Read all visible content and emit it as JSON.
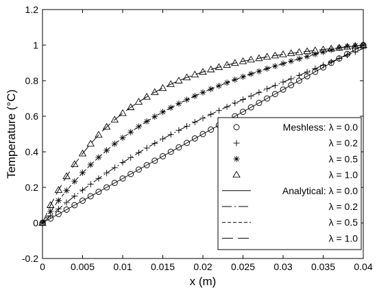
{
  "chart_data": {
    "type": "line",
    "title": "",
    "xlabel": "x (m)",
    "ylabel": "Temperature (°C)",
    "xlim": [
      0,
      0.04
    ],
    "ylim": [
      -0.2,
      1.2
    ],
    "xticks": [
      "0",
      "0.005",
      "0.01",
      "0.015",
      "0.02",
      "0.025",
      "0.03",
      "0.035",
      "0.04"
    ],
    "yticks": [
      "-0.2",
      "0",
      "0.2",
      "0.4",
      "0.6",
      "0.8",
      "1",
      "1.2"
    ],
    "x_ticks_values": [
      0,
      0.005,
      0.01,
      0.015,
      0.02,
      0.025,
      0.03,
      0.035,
      0.04
    ],
    "y_ticks_values": [
      -0.2,
      0,
      0.2,
      0.4,
      0.6,
      0.8,
      1.0,
      1.2
    ],
    "grid": false,
    "legend_position": "bottom-right",
    "x": [
      0,
      0.001,
      0.002,
      0.003,
      0.004,
      0.005,
      0.006,
      0.007,
      0.008,
      0.009,
      0.01,
      0.011,
      0.012,
      0.013,
      0.014,
      0.015,
      0.016,
      0.017,
      0.018,
      0.019,
      0.02,
      0.021,
      0.022,
      0.023,
      0.024,
      0.025,
      0.026,
      0.027,
      0.028,
      0.029,
      0.03,
      0.031,
      0.032,
      0.033,
      0.034,
      0.035,
      0.036,
      0.037,
      0.038,
      0.039,
      0.04
    ],
    "series": [
      {
        "name": "Meshless: λ = 0.0",
        "kind": "markers",
        "marker": "circle",
        "values": [
          0,
          0.025,
          0.05,
          0.075,
          0.1,
          0.125,
          0.15,
          0.175,
          0.2,
          0.225,
          0.25,
          0.275,
          0.3,
          0.325,
          0.35,
          0.375,
          0.4,
          0.425,
          0.45,
          0.475,
          0.5,
          0.525,
          0.55,
          0.575,
          0.6,
          0.625,
          0.65,
          0.675,
          0.7,
          0.725,
          0.75,
          0.775,
          0.8,
          0.825,
          0.85,
          0.875,
          0.9,
          0.925,
          0.95,
          0.975,
          1.0
        ]
      },
      {
        "name": "λ = 0.2",
        "kind": "markers",
        "marker": "plus",
        "values": [
          0,
          0.04,
          0.078,
          0.115,
          0.151,
          0.185,
          0.218,
          0.25,
          0.281,
          0.311,
          0.34,
          0.368,
          0.395,
          0.422,
          0.448,
          0.473,
          0.497,
          0.521,
          0.544,
          0.567,
          0.589,
          0.611,
          0.632,
          0.653,
          0.674,
          0.694,
          0.714,
          0.734,
          0.754,
          0.773,
          0.792,
          0.811,
          0.83,
          0.849,
          0.868,
          0.887,
          0.906,
          0.925,
          0.944,
          0.962,
          0.981
        ]
      },
      {
        "name": "λ = 0.5",
        "kind": "markers",
        "marker": "star",
        "values": [
          0,
          0.065,
          0.126,
          0.182,
          0.234,
          0.282,
          0.327,
          0.369,
          0.408,
          0.445,
          0.479,
          0.511,
          0.542,
          0.571,
          0.598,
          0.624,
          0.648,
          0.671,
          0.693,
          0.714,
          0.734,
          0.753,
          0.771,
          0.789,
          0.806,
          0.822,
          0.838,
          0.853,
          0.868,
          0.882,
          0.896,
          0.91,
          0.923,
          0.936,
          0.949,
          0.961,
          0.973,
          0.985,
          0.993,
          0.997,
          1.0
        ]
      },
      {
        "name": "λ = 1.0",
        "kind": "markers",
        "marker": "triangle",
        "values": [
          0,
          0.1,
          0.185,
          0.262,
          0.33,
          0.39,
          0.445,
          0.495,
          0.54,
          0.58,
          0.617,
          0.65,
          0.681,
          0.709,
          0.735,
          0.758,
          0.78,
          0.8,
          0.818,
          0.834,
          0.849,
          0.863,
          0.876,
          0.888,
          0.899,
          0.909,
          0.918,
          0.926,
          0.934,
          0.941,
          0.948,
          0.954,
          0.96,
          0.965,
          0.97,
          0.975,
          0.98,
          0.985,
          0.99,
          0.995,
          1.0
        ]
      },
      {
        "name": "Analytical: λ = 0.0",
        "kind": "line",
        "dash": "solid",
        "values": [
          0,
          0.025,
          0.05,
          0.075,
          0.1,
          0.125,
          0.15,
          0.175,
          0.2,
          0.225,
          0.25,
          0.275,
          0.3,
          0.325,
          0.35,
          0.375,
          0.4,
          0.425,
          0.45,
          0.475,
          0.5,
          0.525,
          0.55,
          0.575,
          0.6,
          0.625,
          0.65,
          0.675,
          0.7,
          0.725,
          0.75,
          0.775,
          0.8,
          0.825,
          0.85,
          0.875,
          0.9,
          0.925,
          0.95,
          0.975,
          1.0
        ]
      },
      {
        "name": "λ = 0.2",
        "kind": "line",
        "dash": "dash-dot",
        "values": [
          0,
          0.04,
          0.078,
          0.115,
          0.151,
          0.185,
          0.218,
          0.25,
          0.281,
          0.311,
          0.34,
          0.368,
          0.395,
          0.422,
          0.448,
          0.473,
          0.497,
          0.521,
          0.544,
          0.567,
          0.589,
          0.611,
          0.632,
          0.653,
          0.674,
          0.694,
          0.714,
          0.734,
          0.754,
          0.773,
          0.792,
          0.811,
          0.83,
          0.849,
          0.868,
          0.887,
          0.906,
          0.925,
          0.944,
          0.962,
          0.981
        ]
      },
      {
        "name": "λ = 0.5",
        "kind": "line",
        "dash": "short-dash",
        "values": [
          0,
          0.065,
          0.126,
          0.182,
          0.234,
          0.282,
          0.327,
          0.369,
          0.408,
          0.445,
          0.479,
          0.511,
          0.542,
          0.571,
          0.598,
          0.624,
          0.648,
          0.671,
          0.693,
          0.714,
          0.734,
          0.753,
          0.771,
          0.789,
          0.806,
          0.822,
          0.838,
          0.853,
          0.868,
          0.882,
          0.896,
          0.91,
          0.923,
          0.936,
          0.949,
          0.961,
          0.973,
          0.985,
          0.993,
          0.997,
          1.0
        ]
      },
      {
        "name": "λ = 1.0",
        "kind": "line",
        "dash": "long-dash",
        "values": [
          0,
          0.1,
          0.185,
          0.262,
          0.33,
          0.39,
          0.445,
          0.495,
          0.54,
          0.58,
          0.617,
          0.65,
          0.681,
          0.709,
          0.735,
          0.758,
          0.78,
          0.8,
          0.818,
          0.834,
          0.849,
          0.863,
          0.876,
          0.888,
          0.899,
          0.909,
          0.918,
          0.926,
          0.934,
          0.941,
          0.948,
          0.954,
          0.96,
          0.965,
          0.97,
          0.975,
          0.98,
          0.985,
          0.99,
          0.995,
          1.0
        ]
      }
    ],
    "colors": {
      "ink": "#000000",
      "background": "#ffffff"
    }
  }
}
